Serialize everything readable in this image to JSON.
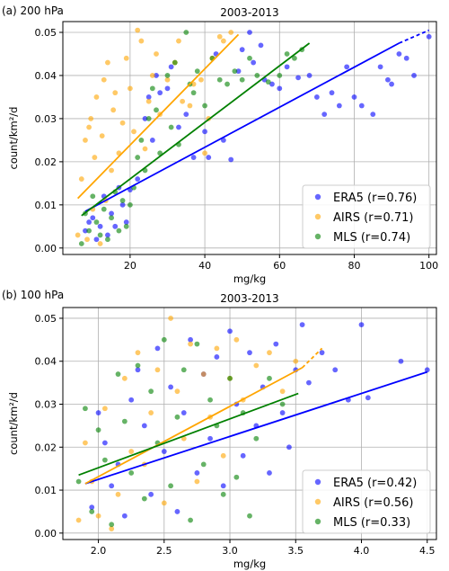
{
  "chart_data": [
    {
      "type": "scatter",
      "panel_label": "(a) 200 hPa",
      "title": "2003-2013",
      "xlabel": "mg/kg",
      "ylabel": "count/km²/d",
      "xlim": [
        2,
        102
      ],
      "ylim": [
        -0.0015,
        0.0525
      ],
      "xticks": [
        20,
        40,
        60,
        80,
        100
      ],
      "xtick_labels": [
        "20",
        "40",
        "60",
        "80",
        "100"
      ],
      "yticks": [
        0.0,
        0.01,
        0.02,
        0.03,
        0.04,
        0.05
      ],
      "ytick_labels": [
        "0.00",
        "0.01",
        "0.02",
        "0.03",
        "0.04",
        "0.05"
      ],
      "grid": true,
      "legend_position": "lower-right",
      "series": [
        {
          "name": "ERA5 (r=0.76)",
          "color": "#0000ff",
          "points": [
            [
              8,
              0.004
            ],
            [
              9,
              0.006
            ],
            [
              10,
              0.007
            ],
            [
              11,
              0.002
            ],
            [
              12,
              0.005
            ],
            [
              13,
              0.012
            ],
            [
              14,
              0.003
            ],
            [
              15,
              0.008
            ],
            [
              16,
              0.005
            ],
            [
              17,
              0.014
            ],
            [
              18,
              0.01
            ],
            [
              19,
              0.006
            ],
            [
              20,
              0.0135
            ],
            [
              22,
              0.016
            ],
            [
              24,
              0.03
            ],
            [
              25,
              0.035
            ],
            [
              26,
              0.025
            ],
            [
              27,
              0.04
            ],
            [
              28,
              0.036
            ],
            [
              30,
              0.037
            ],
            [
              31,
              0.042
            ],
            [
              33,
              0.028
            ],
            [
              35,
              0.031
            ],
            [
              37,
              0.021
            ],
            [
              40,
              0.027
            ],
            [
              41,
              0.021
            ],
            [
              43,
              0.045
            ],
            [
              45,
              0.025
            ],
            [
              47,
              0.0205
            ],
            [
              49,
              0.041
            ],
            [
              50,
              0.046
            ],
            [
              52,
              0.05
            ],
            [
              53,
              0.043
            ],
            [
              55,
              0.047
            ],
            [
              56,
              0.039
            ],
            [
              58,
              0.038
            ],
            [
              60,
              0.037
            ],
            [
              62,
              0.042
            ],
            [
              65,
              0.0395
            ],
            [
              68,
              0.04
            ],
            [
              70,
              0.035
            ],
            [
              72,
              0.031
            ],
            [
              74,
              0.036
            ],
            [
              76,
              0.033
            ],
            [
              78,
              0.042
            ],
            [
              80,
              0.035
            ],
            [
              82,
              0.033
            ],
            [
              85,
              0.031
            ],
            [
              87,
              0.042
            ],
            [
              89,
              0.039
            ],
            [
              90,
              0.038
            ],
            [
              92,
              0.045
            ],
            [
              94,
              0.044
            ],
            [
              96,
              0.04
            ],
            [
              100,
              0.049
            ]
          ],
          "fit": {
            "x": [
              8,
              92
            ],
            "y": [
              0.0085,
              0.0475
            ],
            "dashed_to": [
              100,
              0.0505
            ]
          }
        },
        {
          "name": "AIRS (r=0.71)",
          "color": "#ffa500",
          "points": [
            [
              6,
              0.003
            ],
            [
              7,
              0.016
            ],
            [
              8,
              0.025
            ],
            [
              8.5,
              0.002
            ],
            [
              9,
              0.028
            ],
            [
              9.5,
              0.03
            ],
            [
              10,
              0.009
            ],
            [
              10.5,
              0.021
            ],
            [
              11,
              0.035
            ],
            [
              12,
              0.001
            ],
            [
              12.5,
              0.026
            ],
            [
              13,
              0.039
            ],
            [
              13.5,
              0.011
            ],
            [
              14,
              0.043
            ],
            [
              15,
              0.018
            ],
            [
              15.5,
              0.032
            ],
            [
              16,
              0.036
            ],
            [
              17,
              0.022
            ],
            [
              18,
              0.029
            ],
            [
              19,
              0.044
            ],
            [
              20,
              0.037
            ],
            [
              21,
              0.027
            ],
            [
              22,
              0.0505
            ],
            [
              23,
              0.048
            ],
            [
              24,
              0.023
            ],
            [
              25,
              0.034
            ],
            [
              26,
              0.04
            ],
            [
              27,
              0.045
            ],
            [
              28,
              0.031
            ],
            [
              30,
              0.039
            ],
            [
              32,
              0.043
            ],
            [
              33,
              0.048
            ],
            [
              34,
              0.034
            ],
            [
              36,
              0.033
            ],
            [
              37,
              0.038
            ],
            [
              39,
              0.039
            ],
            [
              40,
              0.022
            ],
            [
              41,
              0.03
            ],
            [
              42,
              0.044
            ],
            [
              44,
              0.049
            ],
            [
              45,
              0.048
            ],
            [
              47,
              0.05
            ]
          ],
          "fit": {
            "x": [
              6,
              49
            ],
            "y": [
              0.0115,
              0.0495
            ]
          }
        },
        {
          "name": "MLS (r=0.74)",
          "color": "#008000",
          "points": [
            [
              7,
              0.001
            ],
            [
              8,
              0.008
            ],
            [
              9,
              0.004
            ],
            [
              10,
              0.012
            ],
            [
              11,
              0.006
            ],
            [
              12,
              0.003
            ],
            [
              13,
              0.009
            ],
            [
              14,
              0.002
            ],
            [
              15,
              0.007
            ],
            [
              16,
              0.013
            ],
            [
              17,
              0.004
            ],
            [
              18,
              0.011
            ],
            [
              19,
              0.005
            ],
            [
              20,
              0.01
            ],
            [
              21,
              0.014
            ],
            [
              22,
              0.021
            ],
            [
              23,
              0.025
            ],
            [
              24,
              0.018
            ],
            [
              25,
              0.03
            ],
            [
              26,
              0.037
            ],
            [
              27,
              0.032
            ],
            [
              28,
              0.022
            ],
            [
              30,
              0.04
            ],
            [
              31,
              0.028
            ],
            [
              32,
              0.043
            ],
            [
              33,
              0.024
            ],
            [
              35,
              0.05
            ],
            [
              36,
              0.038
            ],
            [
              37,
              0.036
            ],
            [
              38,
              0.041
            ],
            [
              40,
              0.033
            ],
            [
              42,
              0.044
            ],
            [
              44,
              0.039
            ],
            [
              46,
              0.038
            ],
            [
              48,
              0.041
            ],
            [
              50,
              0.039
            ],
            [
              52,
              0.044
            ],
            [
              54,
              0.04
            ],
            [
              57,
              0.0385
            ],
            [
              60,
              0.04
            ],
            [
              62,
              0.045
            ],
            [
              64,
              0.044
            ],
            [
              66,
              0.046
            ]
          ],
          "fit": {
            "x": [
              7,
              68
            ],
            "y": [
              0.0075,
              0.0475
            ]
          }
        }
      ]
    },
    {
      "type": "scatter",
      "panel_label": "(b) 100 hPa",
      "title": "2003-2013",
      "xlabel": "mg/kg",
      "ylabel": "count/km²/d",
      "xlim": [
        1.73,
        4.57
      ],
      "ylim": [
        -0.0015,
        0.0525
      ],
      "xticks": [
        2.0,
        2.5,
        3.0,
        3.5,
        4.0,
        4.5
      ],
      "xtick_labels": [
        "2.0",
        "2.5",
        "3.0",
        "3.5",
        "4.0",
        "4.5"
      ],
      "yticks": [
        0.0,
        0.01,
        0.02,
        0.03,
        0.04,
        0.05
      ],
      "ytick_labels": [
        "0.00",
        "0.01",
        "0.02",
        "0.03",
        "0.04",
        "0.05"
      ],
      "grid": true,
      "legend_position": "lower-right",
      "series": [
        {
          "name": "ERA5 (r=0.42)",
          "color": "#0000ff",
          "points": [
            [
              1.95,
              0.006
            ],
            [
              2.0,
              0.028
            ],
            [
              2.05,
              0.021
            ],
            [
              2.1,
              0.011
            ],
            [
              2.15,
              0.016
            ],
            [
              2.2,
              0.004
            ],
            [
              2.25,
              0.031
            ],
            [
              2.3,
              0.038
            ],
            [
              2.35,
              0.025
            ],
            [
              2.4,
              0.009
            ],
            [
              2.45,
              0.043
            ],
            [
              2.5,
              0.019
            ],
            [
              2.55,
              0.034
            ],
            [
              2.6,
              0.005
            ],
            [
              2.65,
              0.028
            ],
            [
              2.7,
              0.045
            ],
            [
              2.75,
              0.014
            ],
            [
              2.8,
              0.037
            ],
            [
              2.85,
              0.022
            ],
            [
              2.9,
              0.041
            ],
            [
              2.95,
              0.011
            ],
            [
              3.0,
              0.047
            ],
            [
              3.05,
              0.03
            ],
            [
              3.1,
              0.018
            ],
            [
              3.15,
              0.042
            ],
            [
              3.2,
              0.025
            ],
            [
              3.25,
              0.034
            ],
            [
              3.3,
              0.014
            ],
            [
              3.35,
              0.044
            ],
            [
              3.4,
              0.028
            ],
            [
              3.45,
              0.02
            ],
            [
              3.5,
              0.038
            ],
            [
              3.55,
              0.0485
            ],
            [
              3.6,
              0.035
            ],
            [
              3.7,
              0.042
            ],
            [
              3.8,
              0.038
            ],
            [
              3.9,
              0.031
            ],
            [
              4.0,
              0.0485
            ],
            [
              4.05,
              0.0315
            ],
            [
              4.3,
              0.04
            ],
            [
              4.5,
              0.038
            ]
          ],
          "fit": {
            "x": [
              1.9,
              4.5
            ],
            "y": [
              0.0115,
              0.0375
            ]
          }
        },
        {
          "name": "AIRS (r=0.56)",
          "color": "#ffa500",
          "points": [
            [
              1.85,
              0.003
            ],
            [
              1.9,
              0.021
            ],
            [
              1.95,
              0.012
            ],
            [
              2.0,
              0.004
            ],
            [
              2.05,
              0.029
            ],
            [
              2.1,
              0.001
            ],
            [
              2.15,
              0.009
            ],
            [
              2.2,
              0.036
            ],
            [
              2.25,
              0.019
            ],
            [
              2.3,
              0.042
            ],
            [
              2.35,
              0.016
            ],
            [
              2.4,
              0.028
            ],
            [
              2.45,
              0.038
            ],
            [
              2.5,
              0.007
            ],
            [
              2.55,
              0.05
            ],
            [
              2.6,
              0.033
            ],
            [
              2.65,
              0.022
            ],
            [
              2.7,
              0.044
            ],
            [
              2.75,
              0.012
            ],
            [
              2.8,
              0.037
            ],
            [
              2.85,
              0.027
            ],
            [
              2.9,
              0.043
            ],
            [
              2.95,
              0.018
            ],
            [
              3.0,
              0.036
            ],
            [
              3.05,
              0.045
            ],
            [
              3.1,
              0.031
            ],
            [
              3.2,
              0.039
            ],
            [
              3.3,
              0.042
            ],
            [
              3.4,
              0.033
            ],
            [
              3.5,
              0.04
            ]
          ],
          "fit": {
            "x": [
              1.9,
              3.55
            ],
            "y": [
              0.0115,
              0.0385
            ],
            "dashed_to": [
              3.7,
              0.043
            ]
          }
        },
        {
          "name": "MLS (r=0.33)",
          "color": "#008000",
          "points": [
            [
              1.85,
              0.012
            ],
            [
              1.9,
              0.029
            ],
            [
              1.95,
              0.005
            ],
            [
              2.0,
              0.024
            ],
            [
              2.05,
              0.017
            ],
            [
              2.1,
              0.002
            ],
            [
              2.15,
              0.037
            ],
            [
              2.2,
              0.026
            ],
            [
              2.25,
              0.014
            ],
            [
              2.3,
              0.039
            ],
            [
              2.35,
              0.008
            ],
            [
              2.4,
              0.033
            ],
            [
              2.45,
              0.021
            ],
            [
              2.5,
              0.045
            ],
            [
              2.55,
              0.011
            ],
            [
              2.6,
              0.027
            ],
            [
              2.65,
              0.038
            ],
            [
              2.7,
              0.003
            ],
            [
              2.75,
              0.044
            ],
            [
              2.8,
              0.016
            ],
            [
              2.85,
              0.031
            ],
            [
              2.9,
              0.025
            ],
            [
              2.95,
              0.009
            ],
            [
              3.0,
              0.036
            ],
            [
              3.05,
              0.013
            ],
            [
              3.1,
              0.028
            ],
            [
              3.15,
              0.004
            ],
            [
              3.2,
              0.022
            ],
            [
              3.3,
              0.036
            ],
            [
              3.4,
              0.03
            ]
          ],
          "fit": {
            "x": [
              1.85,
              3.52
            ],
            "y": [
              0.0135,
              0.0325
            ]
          }
        }
      ]
    }
  ]
}
